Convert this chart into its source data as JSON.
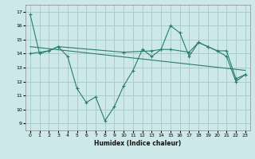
{
  "xlabel": "Humidex (Indice chaleur)",
  "ylabel": "",
  "bg_color": "#cce8e8",
  "grid_color": "#aacccc",
  "line_color": "#2a7d6e",
  "xlim": [
    -0.5,
    23.5
  ],
  "ylim": [
    8.5,
    17.5
  ],
  "xticks": [
    0,
    1,
    2,
    3,
    4,
    5,
    6,
    7,
    8,
    9,
    10,
    11,
    12,
    13,
    14,
    15,
    16,
    17,
    18,
    19,
    20,
    21,
    22,
    23
  ],
  "yticks": [
    9,
    10,
    11,
    12,
    13,
    14,
    15,
    16,
    17
  ],
  "series1": {
    "x": [
      0,
      1,
      2,
      3,
      4,
      5,
      6,
      7,
      8,
      9,
      10,
      11,
      12,
      13,
      14,
      15,
      16,
      17,
      18,
      19,
      20,
      21,
      22,
      23
    ],
    "y": [
      16.8,
      14.0,
      14.2,
      14.5,
      13.8,
      11.5,
      10.5,
      10.9,
      9.2,
      10.2,
      11.7,
      12.8,
      14.3,
      13.8,
      14.3,
      16.0,
      15.5,
      13.8,
      14.8,
      14.5,
      14.2,
      13.8,
      12.0,
      12.5
    ]
  },
  "series2": {
    "x": [
      0,
      2,
      3,
      10,
      13,
      14,
      15,
      17,
      18,
      19,
      20,
      21,
      22,
      23
    ],
    "y": [
      14.0,
      14.2,
      14.5,
      14.1,
      14.2,
      14.3,
      14.3,
      14.1,
      14.8,
      14.5,
      14.2,
      14.2,
      12.2,
      12.5
    ]
  },
  "series3": {
    "x": [
      0,
      23
    ],
    "y": [
      14.5,
      12.8
    ]
  }
}
